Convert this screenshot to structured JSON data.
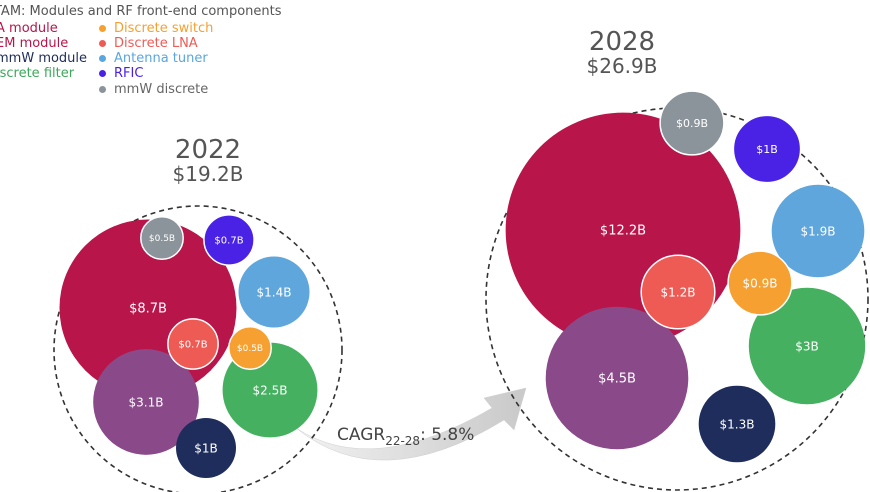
{
  "chart_data": {
    "type": "bubble",
    "title": "TAM: Modules and RF front-end components",
    "legend": [
      {
        "name": "PA module",
        "label": "A module",
        "color": "#b8154a"
      },
      {
        "name": "FEM module",
        "label": "EM module",
        "color": "#b8154a"
      },
      {
        "name": "mmW module",
        "label": "mmW module",
        "color": "#1f2d5c"
      },
      {
        "name": "Discrete filter",
        "label": "iscrete filter",
        "color": "#3ca85a"
      },
      {
        "name": "Discrete switch",
        "label": "Discrete switch",
        "color": "#f5a030"
      },
      {
        "name": "Discrete LNA",
        "label": "Discrete LNA",
        "color": "#ee5b55"
      },
      {
        "name": "Antenna tuner",
        "label": "Antenna tuner",
        "color": "#5aa6dd"
      },
      {
        "name": "RFIC",
        "label": "RFIC",
        "color": "#4a22e6"
      },
      {
        "name": "mmW discrete",
        "label": "mmW discrete",
        "color": "#8b949b"
      }
    ],
    "groups": [
      {
        "year": "2022",
        "total": "$19.2B",
        "bubbles": [
          {
            "label": "$8.7B",
            "value": 8.7,
            "color": "#b8154a"
          },
          {
            "label": "$3.1B",
            "value": 3.1,
            "color": "#8a4a8a"
          },
          {
            "label": "$2.5B",
            "value": 2.5,
            "color": "#45b160"
          },
          {
            "label": "$1.4B",
            "value": 1.4,
            "color": "#5fa6dc"
          },
          {
            "label": "$1B",
            "value": 1.0,
            "color": "#1f2d5c"
          },
          {
            "label": "$0.7B",
            "value": 0.7,
            "color": "#ee5b55"
          },
          {
            "label": "$0.7B",
            "value": 0.7,
            "color": "#4a22e6"
          },
          {
            "label": "$0.5B",
            "value": 0.5,
            "color": "#f5a030"
          },
          {
            "label": "$0.5B",
            "value": 0.5,
            "color": "#8b949b"
          }
        ]
      },
      {
        "year": "2028",
        "total": "$26.9B",
        "bubbles": [
          {
            "label": "$12.2B",
            "value": 12.2,
            "color": "#b8154a"
          },
          {
            "label": "$4.5B",
            "value": 4.5,
            "color": "#8a4a8a"
          },
          {
            "label": "$3B",
            "value": 3.0,
            "color": "#45b160"
          },
          {
            "label": "$1.9B",
            "value": 1.9,
            "color": "#5fa6dc"
          },
          {
            "label": "$1.3B",
            "value": 1.3,
            "color": "#1f2d5c"
          },
          {
            "label": "$1.2B",
            "value": 1.2,
            "color": "#ee5b55"
          },
          {
            "label": "$1B",
            "value": 1.0,
            "color": "#4a22e6"
          },
          {
            "label": "$0.9B",
            "value": 0.9,
            "color": "#f5a030"
          },
          {
            "label": "$0.9B",
            "value": 0.9,
            "color": "#8b949b"
          }
        ]
      }
    ],
    "cagr": {
      "prefix": "CAGR",
      "subscript": "22-28",
      "value": ": 5.8%"
    }
  }
}
